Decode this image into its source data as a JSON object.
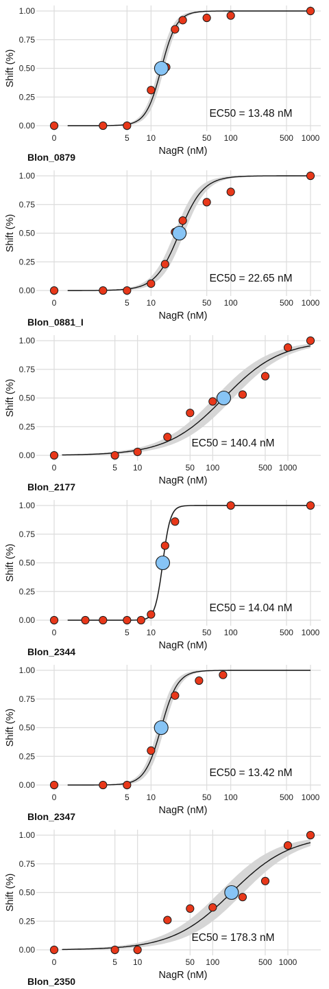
{
  "chart_data": [
    {
      "type": "scatter",
      "title": "Blon_0879",
      "xlabel": "NagR (nM)",
      "ylabel": "Shift (%)",
      "x_scale": "log (zero at left)",
      "x_ticks": [
        "0",
        "5",
        "10",
        "50",
        "100",
        "500",
        "1000"
      ],
      "y_ticks": [
        "0.00",
        "0.25",
        "0.50",
        "0.75",
        "1.00"
      ],
      "ylim": [
        0,
        1
      ],
      "xlim": [
        0,
        1000
      ],
      "grid": true,
      "annotation": "EC50 = 13.48 nM",
      "ec50": 13.48,
      "hill": 4.5,
      "band_width": 0.09,
      "points": [
        [
          0,
          0.0
        ],
        [
          2.5,
          0.0
        ],
        [
          5,
          0.0
        ],
        [
          10,
          0.31
        ],
        [
          15.5,
          0.51
        ],
        [
          20,
          0.84
        ],
        [
          25,
          0.92
        ],
        [
          50,
          0.94
        ],
        [
          100,
          0.96
        ],
        [
          1000,
          1.0
        ]
      ],
      "highlight": [
        13.48,
        0.5
      ],
      "point_color": "#e8381a",
      "highlight_color": "#87c4f5",
      "band_color": "#d4d4d4"
    },
    {
      "type": "scatter",
      "title": "Blon_0881_I",
      "xlabel": "NagR (nM)",
      "ylabel": "Shift (%)",
      "x_scale": "log (zero at left)",
      "x_ticks": [
        "0",
        "5",
        "10",
        "50",
        "100",
        "500",
        "1000"
      ],
      "y_ticks": [
        "0.00",
        "0.25",
        "0.50",
        "0.75",
        "1.00"
      ],
      "ylim": [
        0,
        1
      ],
      "xlim": [
        0,
        1000
      ],
      "grid": true,
      "annotation": "EC50 = 22.65 nM",
      "ec50": 22.65,
      "hill": 2.9,
      "band_width": 0.1,
      "points": [
        [
          0,
          0.0
        ],
        [
          2.5,
          0.0
        ],
        [
          5,
          0.0
        ],
        [
          10,
          0.06
        ],
        [
          15,
          0.23
        ],
        [
          20,
          0.51
        ],
        [
          25,
          0.61
        ],
        [
          50,
          0.77
        ],
        [
          100,
          0.86
        ],
        [
          1000,
          1.0
        ]
      ],
      "highlight": [
        22.65,
        0.5
      ],
      "point_color": "#e8381a",
      "highlight_color": "#87c4f5",
      "band_color": "#d4d4d4"
    },
    {
      "type": "scatter",
      "title": "Blon_2177",
      "xlabel": "NagR (nM)",
      "ylabel": "Shift (%)",
      "x_scale": "log (zero at left)",
      "x_ticks": [
        "0",
        "5",
        "10",
        "50",
        "100",
        "500",
        "1000"
      ],
      "y_ticks": [
        "0.00",
        "0.25",
        "0.50",
        "0.75",
        "1.00"
      ],
      "ylim": [
        0,
        1
      ],
      "xlim": [
        0,
        2000
      ],
      "grid": true,
      "annotation": "EC50 = 140.4 nM",
      "ec50": 140.4,
      "hill": 1.15,
      "band_width": 0.08,
      "points": [
        [
          0,
          0.0
        ],
        [
          5,
          0.0
        ],
        [
          10,
          0.03
        ],
        [
          25,
          0.16
        ],
        [
          50,
          0.37
        ],
        [
          100,
          0.47
        ],
        [
          250,
          0.53
        ],
        [
          500,
          0.69
        ],
        [
          1000,
          0.94
        ],
        [
          2000,
          1.0
        ]
      ],
      "highlight": [
        140.4,
        0.5
      ],
      "point_color": "#e8381a",
      "highlight_color": "#87c4f5",
      "band_color": "#d4d4d4"
    },
    {
      "type": "scatter",
      "title": "Blon_2344",
      "xlabel": "NagR (nM)",
      "ylabel": "Shift (%)",
      "x_scale": "log (zero at left)",
      "x_ticks": [
        "0",
        "5",
        "10",
        "50",
        "100",
        "500",
        "1000"
      ],
      "y_ticks": [
        "0.00",
        "0.25",
        "0.50",
        "0.75",
        "1.00"
      ],
      "ylim": [
        0,
        1
      ],
      "xlim": [
        0,
        1000
      ],
      "grid": true,
      "annotation": "EC50 = 14.04 nM",
      "ec50": 14.04,
      "hill": 9.0,
      "band_width": 0.04,
      "points": [
        [
          0,
          0.0
        ],
        [
          1.5,
          0.0
        ],
        [
          2.5,
          0.0
        ],
        [
          5,
          0.0
        ],
        [
          7.5,
          0.0
        ],
        [
          10,
          0.05
        ],
        [
          15,
          0.65
        ],
        [
          20,
          0.86
        ],
        [
          100,
          1.0
        ],
        [
          1000,
          1.0
        ]
      ],
      "highlight": [
        14.04,
        0.5
      ],
      "point_color": "#e8381a",
      "highlight_color": "#87c4f5",
      "band_color": "#d4d4d4"
    },
    {
      "type": "scatter",
      "title": "Blon_2347",
      "xlabel": "NagR (nM)",
      "ylabel": "Shift (%)",
      "x_scale": "log (zero at left)",
      "x_ticks": [
        "0",
        "5",
        "10",
        "50",
        "100",
        "500",
        "1000"
      ],
      "y_ticks": [
        "0.00",
        "0.25",
        "0.50",
        "0.75",
        "1.00"
      ],
      "ylim": [
        0,
        1
      ],
      "xlim": [
        0,
        1000
      ],
      "grid": true,
      "annotation": "EC50 = 13.42 nM",
      "ec50": 13.42,
      "hill": 4.2,
      "band_width": 0.1,
      "points": [
        [
          0,
          0.0
        ],
        [
          2.5,
          0.0
        ],
        [
          5,
          0.0
        ],
        [
          10,
          0.3
        ],
        [
          20,
          0.78
        ],
        [
          40,
          0.91
        ],
        [
          80,
          0.96
        ]
      ],
      "highlight": [
        13.42,
        0.5
      ],
      "point_color": "#e8381a",
      "highlight_color": "#87c4f5",
      "band_color": "#d4d4d4"
    },
    {
      "type": "scatter",
      "title": "Blon_2350",
      "xlabel": "NagR (nM)",
      "ylabel": "Shift (%)",
      "x_scale": "log (zero at left)",
      "x_ticks": [
        "0",
        "5",
        "10",
        "50",
        "100",
        "500",
        "1000"
      ],
      "y_ticks": [
        "0.00",
        "0.25",
        "0.50",
        "0.75",
        "1.00"
      ],
      "ylim": [
        0,
        1
      ],
      "xlim": [
        0,
        2000
      ],
      "grid": true,
      "annotation": "EC50 = 178.3 nM",
      "ec50": 178.3,
      "hill": 1.1,
      "band_width": 0.1,
      "points": [
        [
          0,
          0.0
        ],
        [
          5,
          0.0
        ],
        [
          10,
          0.0
        ],
        [
          25,
          0.26
        ],
        [
          50,
          0.36
        ],
        [
          100,
          0.37
        ],
        [
          250,
          0.46
        ],
        [
          500,
          0.6
        ],
        [
          1000,
          0.91
        ],
        [
          2000,
          1.0
        ]
      ],
      "highlight": [
        178.3,
        0.5
      ],
      "point_color": "#e8381a",
      "highlight_color": "#87c4f5",
      "band_color": "#d4d4d4"
    }
  ]
}
